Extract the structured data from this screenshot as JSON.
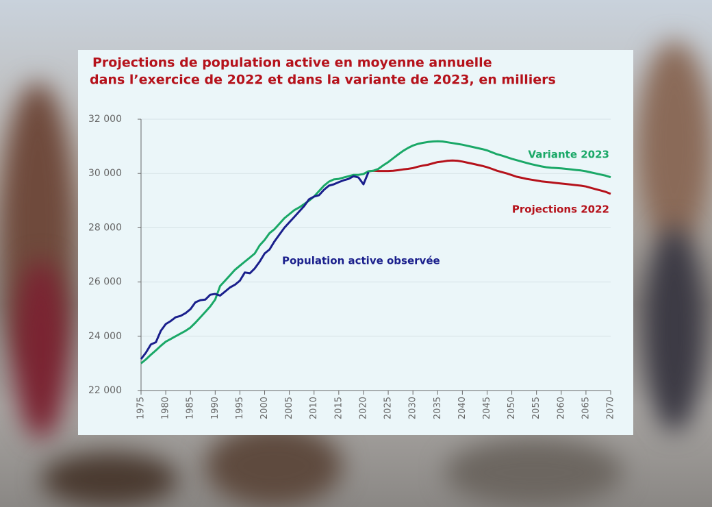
{
  "chart_data": {
    "type": "line",
    "title": [
      "Projections de population active en moyenne annuelle",
      "dans l’exercice de 2022 et dans la variante de 2023, en milliers"
    ],
    "x": [
      1975,
      1976,
      1977,
      1978,
      1979,
      1980,
      1981,
      1982,
      1983,
      1984,
      1985,
      1986,
      1987,
      1988,
      1989,
      1990,
      1991,
      1992,
      1993,
      1994,
      1995,
      1996,
      1997,
      1998,
      1999,
      2000,
      2001,
      2002,
      2003,
      2004,
      2005,
      2006,
      2007,
      2008,
      2009,
      2010,
      2011,
      2012,
      2013,
      2014,
      2015,
      2016,
      2017,
      2018,
      2019,
      2020,
      2021,
      2022,
      2023,
      2024,
      2025,
      2026,
      2027,
      2028,
      2029,
      2030,
      2031,
      2032,
      2033,
      2034,
      2035,
      2036,
      2037,
      2038,
      2039,
      2040,
      2041,
      2042,
      2043,
      2044,
      2045,
      2046,
      2047,
      2048,
      2049,
      2050,
      2051,
      2052,
      2053,
      2054,
      2055,
      2056,
      2057,
      2058,
      2059,
      2060,
      2061,
      2062,
      2063,
      2064,
      2065,
      2066,
      2067,
      2068,
      2069,
      2070
    ],
    "series": [
      {
        "name": "Projections 2022",
        "color": "#b5121b",
        "values": [
          null,
          null,
          null,
          null,
          null,
          null,
          null,
          null,
          null,
          null,
          null,
          null,
          null,
          null,
          null,
          null,
          null,
          null,
          null,
          null,
          null,
          null,
          null,
          null,
          null,
          null,
          null,
          null,
          null,
          null,
          null,
          null,
          null,
          null,
          null,
          null,
          null,
          null,
          null,
          null,
          null,
          null,
          null,
          null,
          null,
          null,
          30080,
          30100,
          30090,
          30090,
          30090,
          30100,
          30120,
          30150,
          30170,
          30200,
          30250,
          30290,
          30320,
          30370,
          30420,
          30440,
          30470,
          30480,
          30470,
          30440,
          30400,
          30360,
          30320,
          30280,
          30230,
          30170,
          30100,
          30050,
          30000,
          29940,
          29880,
          29840,
          29800,
          29770,
          29740,
          29710,
          29690,
          29670,
          29650,
          29630,
          29610,
          29590,
          29570,
          29550,
          29520,
          29470,
          29420,
          29370,
          29320,
          29250
        ]
      },
      {
        "name": "Variante 2023",
        "color": "#1aa867",
        "values": [
          23000,
          23150,
          23320,
          23480,
          23650,
          23800,
          23900,
          24000,
          24100,
          24200,
          24320,
          24500,
          24700,
          24900,
          25100,
          25350,
          25850,
          26050,
          26250,
          26450,
          26600,
          26750,
          26900,
          27050,
          27350,
          27550,
          27800,
          27950,
          28150,
          28350,
          28500,
          28650,
          28750,
          28870,
          29000,
          29150,
          29350,
          29550,
          29700,
          29780,
          29800,
          29850,
          29900,
          29950,
          29950,
          29980,
          30080,
          30100,
          30170,
          30300,
          30420,
          30560,
          30700,
          30830,
          30940,
          31030,
          31090,
          31130,
          31160,
          31180,
          31190,
          31180,
          31150,
          31120,
          31090,
          31060,
          31020,
          30980,
          30940,
          30900,
          30850,
          30780,
          30710,
          30660,
          30600,
          30540,
          30490,
          30440,
          30390,
          30340,
          30300,
          30260,
          30230,
          30210,
          30200,
          30190,
          30170,
          30150,
          30130,
          30110,
          30080,
          30040,
          30000,
          29960,
          29920,
          29860
        ]
      },
      {
        "name": "Population active observée",
        "color": "#1a1f8c",
        "values": [
          23160,
          23400,
          23700,
          23780,
          24200,
          24450,
          24560,
          24700,
          24750,
          24850,
          25000,
          25250,
          25330,
          25350,
          25530,
          25560,
          25500,
          25650,
          25800,
          25900,
          26050,
          26350,
          26320,
          26500,
          26750,
          27050,
          27200,
          27500,
          27750,
          28000,
          28200,
          28400,
          28600,
          28800,
          29050,
          29150,
          29200,
          29400,
          29550,
          29600,
          29680,
          29750,
          29800,
          29900,
          29850,
          29600,
          30050,
          null,
          null,
          null,
          null,
          null,
          null,
          null,
          null,
          null,
          null,
          null,
          null,
          null,
          null,
          null,
          null,
          null,
          null,
          null,
          null,
          null,
          null,
          null,
          null,
          null,
          null,
          null,
          null,
          null,
          null,
          null,
          null,
          null,
          null,
          null,
          null,
          null,
          null,
          null,
          null,
          null,
          null,
          null,
          null,
          null,
          null,
          null,
          null,
          null
        ]
      }
    ],
    "xlim": [
      1975,
      2070
    ],
    "xticks": [
      1975,
      1980,
      1985,
      1990,
      1995,
      2000,
      2005,
      2010,
      2015,
      2020,
      2025,
      2030,
      2035,
      2040,
      2045,
      2050,
      2055,
      2060,
      2065,
      2070
    ],
    "ylim": [
      22000,
      32000
    ],
    "yticks": [
      {
        "value": 22000,
        "label": "22 000"
      },
      {
        "value": 24000,
        "label": "24 000"
      },
      {
        "value": 26000,
        "label": "26 000"
      },
      {
        "value": 28000,
        "label": "28 000"
      },
      {
        "value": 30000,
        "label": "30 000"
      },
      {
        "value": 32000,
        "label": "32 000"
      }
    ],
    "grid": true
  }
}
